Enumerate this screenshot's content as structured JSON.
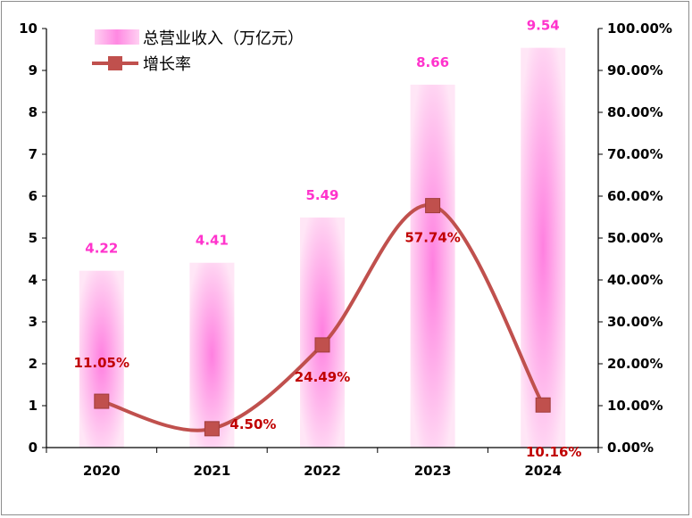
{
  "chart_data": {
    "type": "bar+line",
    "categories": [
      "2020",
      "2021",
      "2022",
      "2023",
      "2024"
    ],
    "series": [
      {
        "name": "总营业收入（万亿元）",
        "type": "bar",
        "axis": "left",
        "values": [
          4.22,
          4.41,
          5.49,
          8.66,
          9.54
        ],
        "labels": [
          "4.22",
          "4.41",
          "5.49",
          "8.66",
          "9.54"
        ],
        "color": "#ff66d9"
      },
      {
        "name": "增长率",
        "type": "line",
        "axis": "right",
        "smooth": true,
        "marker": "square",
        "values": [
          11.05,
          4.5,
          24.49,
          57.74,
          10.16
        ],
        "labels": [
          "11.05%",
          "4.50%",
          "24.49%",
          "57.74%",
          "10.16%"
        ],
        "label_placement": [
          "above",
          "right",
          "below",
          "below",
          "below"
        ],
        "color": "#c0504d",
        "label_color": "#c00000"
      }
    ],
    "left_axis": {
      "range": [
        0,
        10
      ],
      "ticks": [
        "0",
        "1",
        "2",
        "3",
        "4",
        "5",
        "6",
        "7",
        "8",
        "9",
        "10"
      ]
    },
    "right_axis": {
      "range": [
        0,
        100
      ],
      "ticks": [
        "0.00%",
        "10.00%",
        "20.00%",
        "30.00%",
        "40.00%",
        "50.00%",
        "60.00%",
        "70.00%",
        "80.00%",
        "90.00%",
        "100.00%"
      ]
    },
    "grid": false,
    "legend": "top-left",
    "bar_label_color": "#ff33cc"
  }
}
